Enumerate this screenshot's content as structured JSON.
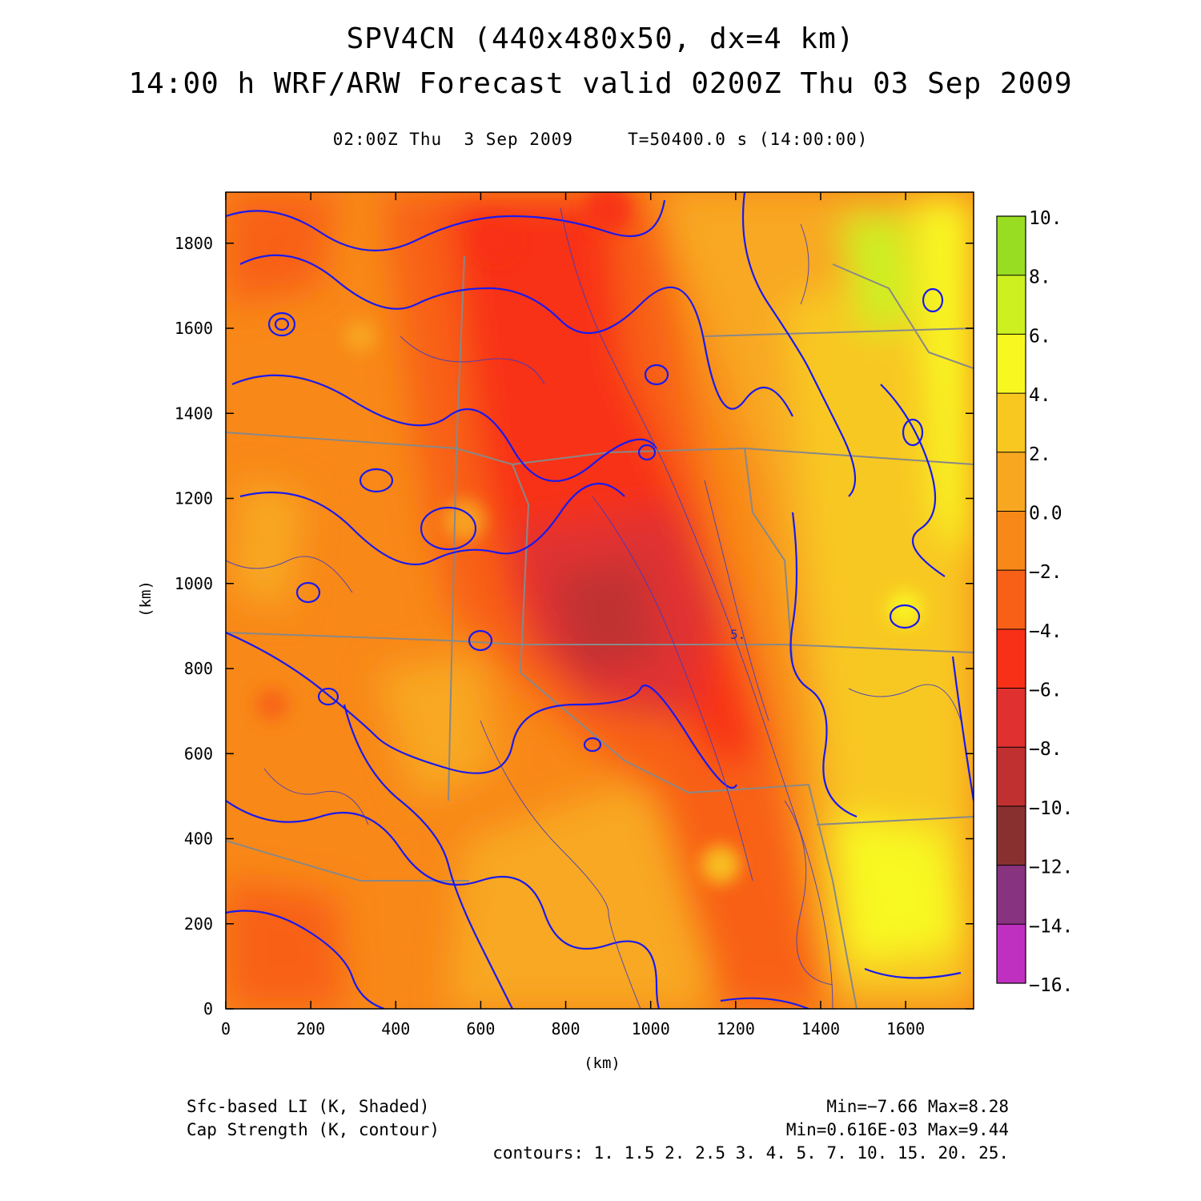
{
  "header": {
    "title_line1": "SPV4CN (440x480x50, dx=4 km)",
    "title_line2": "14:00 h WRF/ARW Forecast valid 0200Z Thu 03 Sep 2009",
    "subtitle": "02:00Z Thu  3 Sep 2009     T=50400.0 s (14:00:00)"
  },
  "axes": {
    "xlabel": "(km)",
    "ylabel": "(km)",
    "x_ticks": [
      "0",
      "200",
      "400",
      "600",
      "800",
      "1000",
      "1200",
      "1400",
      "1600"
    ],
    "y_ticks": [
      "0",
      "200",
      "400",
      "600",
      "800",
      "1000",
      "1200",
      "1400",
      "1600",
      "1800"
    ],
    "contour_label": "5."
  },
  "colorbar": {
    "labels": [
      "10.",
      "8.",
      "6.",
      "4.",
      "2.",
      "0.0",
      "−2.",
      "−4.",
      "−6.",
      "−8.",
      "−10.",
      "−12.",
      "−14.",
      "−16."
    ],
    "colors": [
      "#99dd22",
      "#ccf020",
      "#f8f820",
      "#f8c820",
      "#f8a820",
      "#f88818",
      "#f86018",
      "#f83018",
      "#e03030",
      "#c03030",
      "#883030",
      "#883380",
      "#c030c0",
      "#e040e0"
    ]
  },
  "footer": {
    "left_line1": "Sfc-based LI (K, Shaded)",
    "left_line2": "Cap Strength (K, contour)",
    "right_line1": "Min=−7.66 Max=8.28",
    "right_line2": "Min=0.616E-03 Max=9.44",
    "right_line3": "contours: 1. 1.5 2. 2.5 3. 4. 5. 7. 10. 15. 20. 25."
  },
  "chart_data": {
    "type": "heatmap",
    "title": "SPV4CN (440x480x50, dx=4 km)",
    "xlabel": "(km)",
    "ylabel": "(km)",
    "xlim": [
      0,
      1760
    ],
    "ylim": [
      0,
      1920
    ],
    "fields": [
      {
        "name": "Sfc-based LI (K, Shaded)",
        "min": -7.66,
        "max": 8.28
      },
      {
        "name": "Cap Strength (K, contour)",
        "min": 0.000616,
        "max": 9.44
      }
    ],
    "shade_levels": [
      -16,
      -14,
      -12,
      -10,
      -8,
      -6,
      -4,
      -2,
      0,
      2,
      4,
      6,
      8,
      10
    ],
    "contour_levels": [
      1,
      1.5,
      2,
      2.5,
      3,
      4,
      5,
      7,
      10,
      15,
      20,
      25
    ]
  }
}
